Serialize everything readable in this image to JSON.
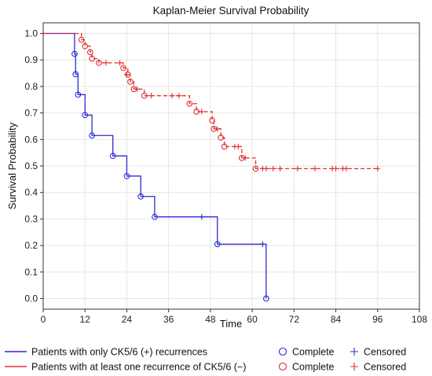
{
  "chart_data": {
    "type": "line",
    "title": "Kaplan-Meier Survival Probability",
    "xlabel": "Time",
    "ylabel": "Survival Probability",
    "xlim": [
      0,
      108
    ],
    "ylim": [
      -0.04,
      1.04
    ],
    "xticks": [
      0,
      12,
      24,
      36,
      48,
      60,
      72,
      84,
      96,
      108
    ],
    "yticks": [
      0.0,
      0.1,
      0.2,
      0.3,
      0.4,
      0.5,
      0.6,
      0.7,
      0.8,
      0.9,
      1.0
    ],
    "grid": true,
    "legend_position": "bottom",
    "series": [
      {
        "name": "Patients with only CK5/6 (+) recurrences",
        "color": "#2b2bd6",
        "line_style": "solid",
        "steps": [
          [
            0,
            1.0
          ],
          [
            9,
            0.923
          ],
          [
            9.3,
            0.846
          ],
          [
            10,
            0.769
          ],
          [
            12,
            0.692
          ],
          [
            14,
            0.615
          ],
          [
            20,
            0.538
          ],
          [
            24,
            0.462
          ],
          [
            28,
            0.385
          ],
          [
            32,
            0.308
          ],
          [
            50,
            0.205
          ],
          [
            64,
            0.0
          ]
        ],
        "events": [
          [
            9,
            0.923
          ],
          [
            9.3,
            0.846
          ],
          [
            10,
            0.769
          ],
          [
            12,
            0.692
          ],
          [
            14,
            0.615
          ],
          [
            20,
            0.538
          ],
          [
            24,
            0.462
          ],
          [
            28,
            0.385
          ],
          [
            32,
            0.308
          ],
          [
            50,
            0.205
          ],
          [
            64,
            0.0
          ]
        ],
        "censored": [
          [
            45.5,
            0.308
          ],
          [
            63,
            0.205
          ]
        ]
      },
      {
        "name": "Patients with at least one recurrence of CK5/6 (−)",
        "color": "#e03030",
        "line_style": "dashed",
        "steps": [
          [
            0,
            1.0
          ],
          [
            11,
            0.976
          ],
          [
            12,
            0.952
          ],
          [
            13.5,
            0.929
          ],
          [
            14,
            0.905
          ],
          [
            16,
            0.889
          ],
          [
            23,
            0.87
          ],
          [
            24.3,
            0.845
          ],
          [
            25,
            0.818
          ],
          [
            26,
            0.79
          ],
          [
            29,
            0.765
          ],
          [
            42,
            0.735
          ],
          [
            44,
            0.705
          ],
          [
            48.5,
            0.672
          ],
          [
            49,
            0.64
          ],
          [
            51,
            0.607
          ],
          [
            52,
            0.573
          ],
          [
            57,
            0.53
          ],
          [
            61,
            0.49
          ],
          [
            96,
            0.49
          ]
        ],
        "events": [
          [
            11,
            0.976
          ],
          [
            12,
            0.952
          ],
          [
            13.5,
            0.929
          ],
          [
            14,
            0.905
          ],
          [
            16,
            0.889
          ],
          [
            23,
            0.87
          ],
          [
            24.3,
            0.845
          ],
          [
            25,
            0.818
          ],
          [
            26,
            0.79
          ],
          [
            29,
            0.765
          ],
          [
            42,
            0.735
          ],
          [
            44,
            0.705
          ],
          [
            48.5,
            0.672
          ],
          [
            49,
            0.64
          ],
          [
            51,
            0.607
          ],
          [
            52,
            0.573
          ],
          [
            57,
            0.53
          ],
          [
            61,
            0.49
          ]
        ],
        "censored": [
          [
            18,
            0.889
          ],
          [
            22,
            0.889
          ],
          [
            24,
            0.845
          ],
          [
            27,
            0.79
          ],
          [
            31,
            0.765
          ],
          [
            37,
            0.765
          ],
          [
            39,
            0.765
          ],
          [
            45.5,
            0.705
          ],
          [
            50,
            0.64
          ],
          [
            55,
            0.573
          ],
          [
            56,
            0.573
          ],
          [
            58,
            0.53
          ],
          [
            63,
            0.49
          ],
          [
            64,
            0.49
          ],
          [
            66,
            0.49
          ],
          [
            68,
            0.49
          ],
          [
            73,
            0.49
          ],
          [
            78,
            0.49
          ],
          [
            83,
            0.49
          ],
          [
            84,
            0.49
          ],
          [
            86,
            0.49
          ],
          [
            87,
            0.49
          ],
          [
            96,
            0.49
          ]
        ]
      }
    ]
  },
  "legend": {
    "rows": [
      {
        "label": "Patients with only CK5/6 (+) recurrences",
        "color": "#2b2bd6",
        "complete_label": "Complete",
        "censored_label": "Censored"
      },
      {
        "label": "Patients with at least one recurrence of CK5/6 (−)",
        "color": "#e03030",
        "complete_label": "Complete",
        "censored_label": "Censored"
      }
    ]
  }
}
